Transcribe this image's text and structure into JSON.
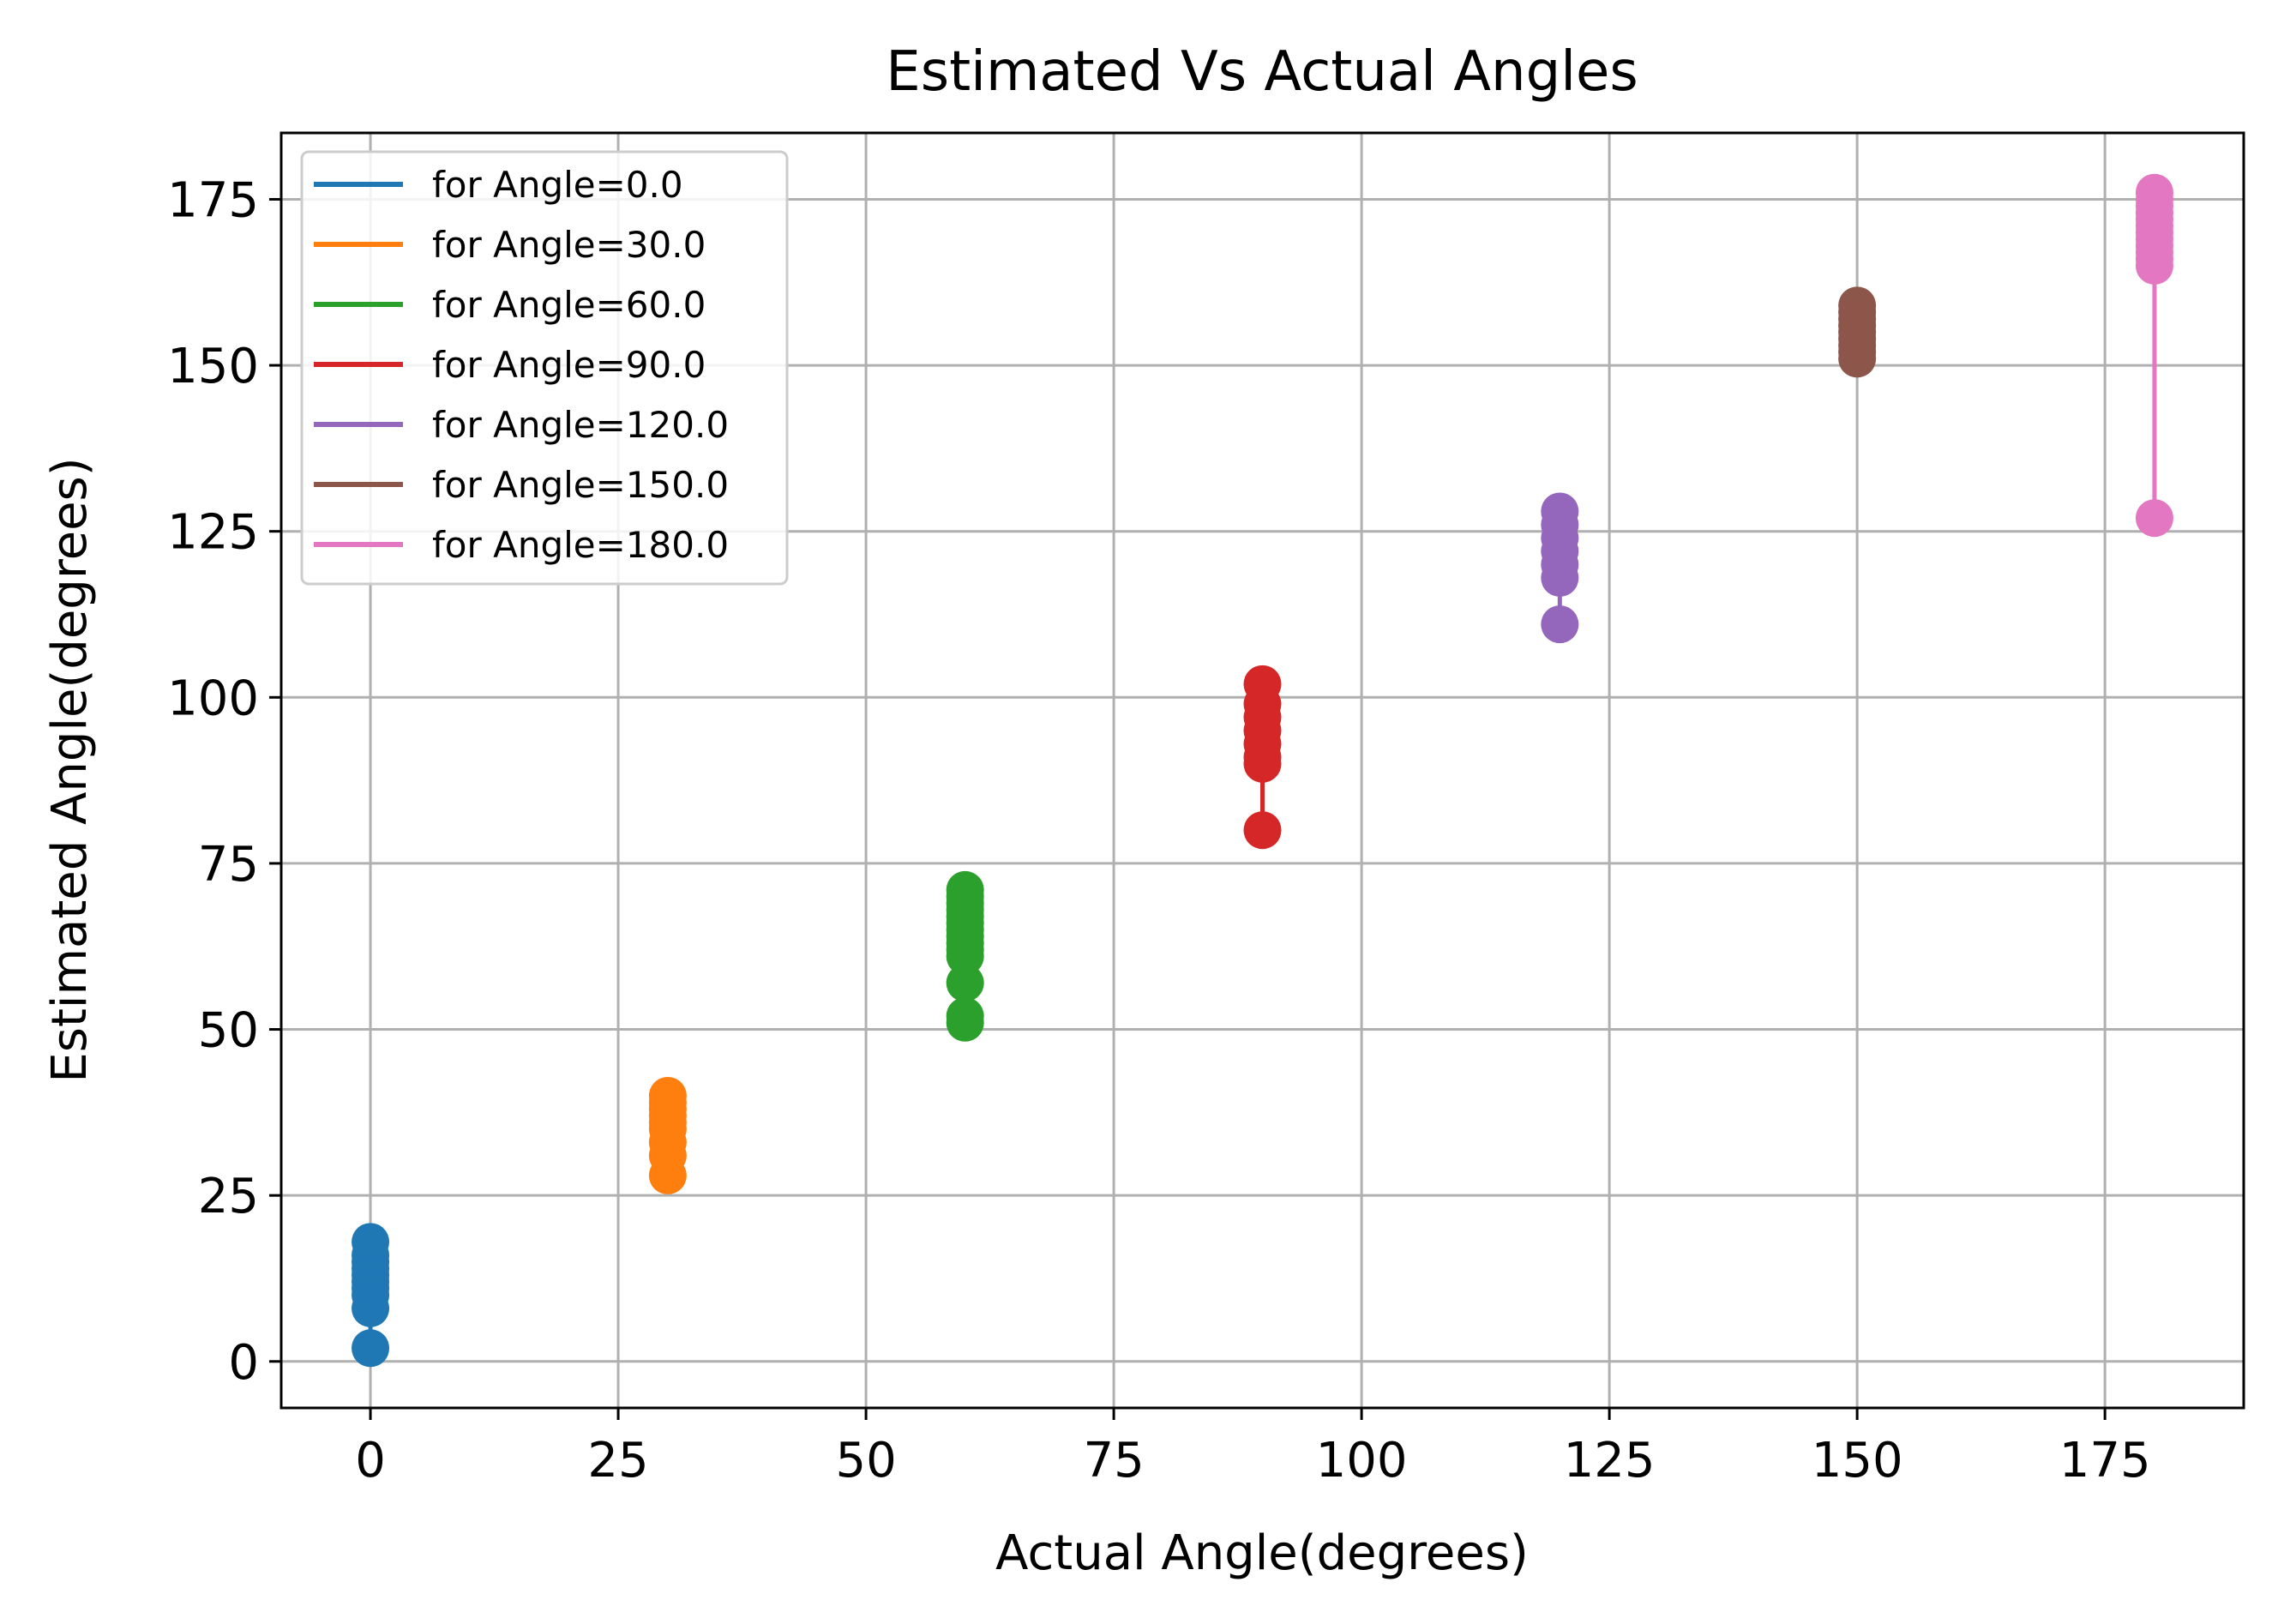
{
  "chart_data": {
    "type": "scatter",
    "title": "Estimated Vs Actual Angles",
    "xlabel": "Actual Angle(degrees)",
    "ylabel": "Estimated Angle(degrees)",
    "xlim": [
      -9,
      189
    ],
    "ylim": [
      -7,
      185
    ],
    "xticks": [
      0,
      25,
      50,
      75,
      100,
      125,
      150,
      175
    ],
    "yticks": [
      0,
      25,
      50,
      75,
      100,
      125,
      150,
      175
    ],
    "grid": true,
    "legend_position": "top-left",
    "series": [
      {
        "name": "for Angle=0.0",
        "color": "#1f77b4",
        "x": 0,
        "y": [
          2,
          8,
          10,
          11,
          12,
          13,
          14,
          15,
          16,
          18
        ]
      },
      {
        "name": "for Angle=30.0",
        "color": "#ff7f0e",
        "x": 30,
        "y": [
          28,
          31,
          33,
          35,
          36,
          37,
          38,
          39,
          40
        ]
      },
      {
        "name": "for Angle=60.0",
        "color": "#2ca02c",
        "x": 60,
        "y": [
          51,
          52,
          57,
          61,
          62,
          63,
          64,
          65,
          66,
          67,
          68,
          69,
          70,
          71
        ]
      },
      {
        "name": "for Angle=90.0",
        "color": "#d62728",
        "x": 90,
        "y": [
          80,
          90,
          91,
          93,
          95,
          97,
          99,
          102
        ]
      },
      {
        "name": "for Angle=120.0",
        "color": "#9467bd",
        "x": 120,
        "y": [
          111,
          118,
          120,
          122,
          124,
          126,
          128
        ]
      },
      {
        "name": "for Angle=150.0",
        "color": "#8c564b",
        "x": 150,
        "y": [
          151,
          152,
          153,
          154,
          155,
          156,
          157,
          158,
          159
        ]
      },
      {
        "name": "for Angle=180.0",
        "color": "#e377c2",
        "x": 180,
        "y": [
          127,
          165,
          166,
          167,
          168,
          169,
          170,
          171,
          172,
          173,
          174,
          175,
          176
        ]
      }
    ]
  }
}
